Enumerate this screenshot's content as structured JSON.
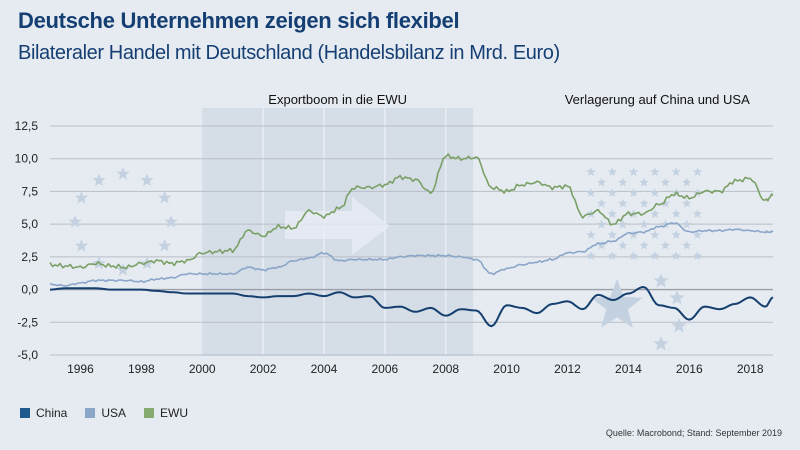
{
  "header": {
    "title": "Deutsche Unternehmen zeigen sich flexibel",
    "subtitle": "Bilateraler Handel mit Deutschland (Handelsbilanz in Mrd. Euro)"
  },
  "footer": {
    "source": "Quelle: Macrobond; Stand: September 2019"
  },
  "colors": {
    "China": "#143f6e",
    "USA": "#8aa6c8",
    "EWU": "#7aa065",
    "background": "#e6ebf2",
    "band": "#d5dde7",
    "stars": "#c3d1e0"
  },
  "chart_data": {
    "type": "line",
    "title": "Deutsche Unternehmen zeigen sich flexibel",
    "subtitle": "Bilateraler Handel mit Deutschland (Handelsbilanz in Mrd. Euro)",
    "xlabel": "",
    "ylabel": "",
    "xlim": [
      1995,
      2018.75
    ],
    "ylim": [
      -5.0,
      12.5
    ],
    "grid": true,
    "x_ticks": [
      "1996",
      "1998",
      "2000",
      "2002",
      "2004",
      "2006",
      "2008",
      "2010",
      "2012",
      "2014",
      "2016",
      "2018"
    ],
    "y_ticks": [
      "12,5",
      "10,0",
      "7,5",
      "5,0",
      "2,5",
      "0,0",
      "-2,5",
      "-5,0"
    ],
    "legend_position": "bottom-left",
    "annotations": [
      {
        "text": "Exportboom in die EWU",
        "x_range": [
          2000,
          2008.9
        ]
      },
      {
        "text": "Verlagerung auf China und USA",
        "x_range": [
          2012.5,
          2017
        ]
      }
    ],
    "x": [
      1995.0,
      1995.5,
      1996.0,
      1996.5,
      1997.0,
      1997.5,
      1998.0,
      1998.5,
      1999.0,
      1999.5,
      2000.0,
      2000.5,
      2001.0,
      2001.5,
      2002.0,
      2002.5,
      2003.0,
      2003.5,
      2004.0,
      2004.5,
      2005.0,
      2005.5,
      2006.0,
      2006.5,
      2007.0,
      2007.5,
      2008.0,
      2008.5,
      2009.0,
      2009.5,
      2010.0,
      2010.5,
      2011.0,
      2011.5,
      2012.0,
      2012.5,
      2013.0,
      2013.5,
      2014.0,
      2014.5,
      2015.0,
      2015.5,
      2016.0,
      2016.5,
      2017.0,
      2017.5,
      2018.0,
      2018.5,
      2018.75
    ],
    "series": [
      {
        "name": "China",
        "values": [
          0.0,
          0.1,
          0.1,
          0.1,
          0.0,
          0.0,
          0.0,
          -0.1,
          -0.2,
          -0.3,
          -0.3,
          -0.3,
          -0.3,
          -0.5,
          -0.6,
          -0.5,
          -0.5,
          -0.3,
          -0.5,
          -0.2,
          -0.6,
          -0.5,
          -1.4,
          -1.3,
          -1.7,
          -1.4,
          -2.0,
          -1.5,
          -1.6,
          -2.8,
          -1.2,
          -1.4,
          -1.8,
          -1.1,
          -0.9,
          -1.5,
          -0.4,
          -0.8,
          -0.3,
          0.2,
          -1.2,
          -1.4,
          -2.3,
          -1.3,
          -1.5,
          -1.1,
          -0.6,
          -1.3,
          -0.6
        ]
      },
      {
        "name": "USA",
        "values": [
          0.4,
          0.3,
          0.5,
          0.7,
          0.7,
          0.7,
          0.6,
          0.8,
          0.9,
          1.2,
          1.2,
          1.2,
          1.2,
          1.7,
          1.5,
          1.7,
          2.2,
          2.4,
          2.8,
          2.2,
          2.3,
          2.3,
          2.3,
          2.5,
          2.6,
          2.6,
          2.6,
          2.5,
          2.3,
          1.2,
          1.6,
          1.9,
          2.1,
          2.3,
          2.8,
          2.9,
          3.5,
          3.7,
          4.3,
          4.4,
          4.8,
          5.1,
          4.4,
          4.5,
          4.5,
          4.6,
          4.5,
          4.4,
          4.4
        ]
      },
      {
        "name": "EWU",
        "values": [
          1.9,
          1.8,
          1.7,
          2.0,
          1.8,
          1.7,
          2.0,
          2.2,
          2.0,
          2.2,
          2.8,
          2.9,
          3.0,
          4.5,
          4.1,
          4.8,
          4.7,
          6.0,
          5.6,
          6.2,
          7.8,
          7.8,
          8.0,
          8.6,
          8.4,
          7.4,
          10.2,
          10.0,
          10.1,
          7.8,
          7.5,
          8.0,
          8.2,
          7.8,
          7.9,
          5.6,
          6.0,
          5.0,
          5.8,
          5.8,
          6.5,
          7.3,
          7.0,
          7.5,
          7.5,
          8.3,
          8.5,
          6.8,
          7.2
        ]
      }
    ]
  },
  "legend": [
    {
      "label": "China",
      "color": "#1f5a8e"
    },
    {
      "label": "USA",
      "color": "#8aa6c8"
    },
    {
      "label": "EWU",
      "color": "#86ab6f"
    }
  ]
}
